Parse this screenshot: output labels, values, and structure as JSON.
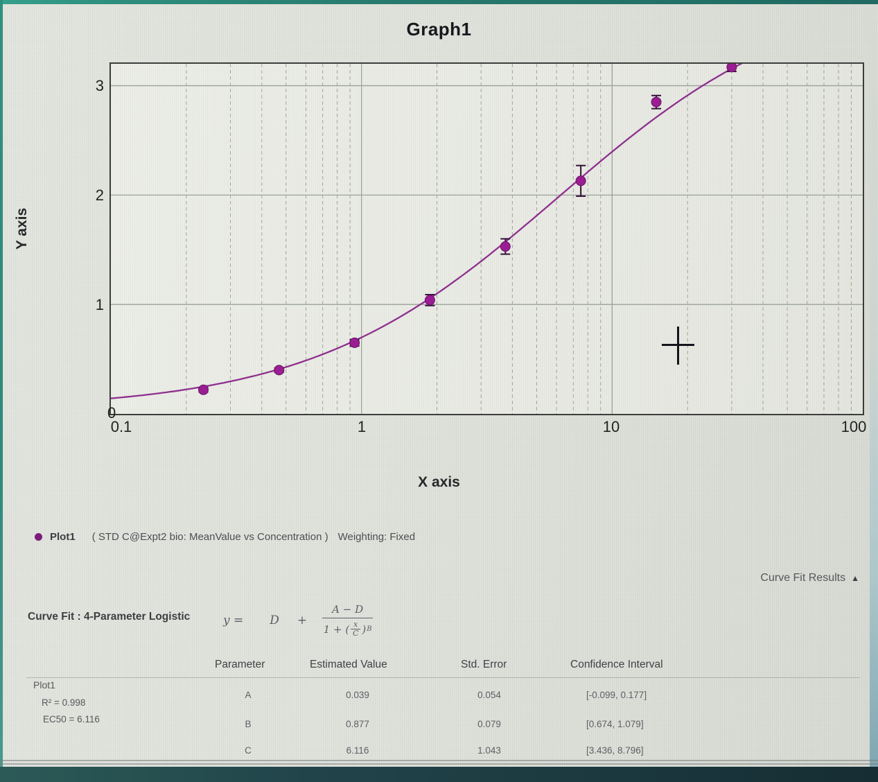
{
  "colors": {
    "background": "#e0e2db",
    "plot_background": "#e9ebe4",
    "plot_border": "#3a3d3a",
    "grid_major": "#9aa29a",
    "grid_minor": "#939b92",
    "curve": "#8e2f8e",
    "point": "#9a1d92",
    "point_edge": "#6b1266",
    "error_bar": "#331139",
    "accent_teal": "#2e9182",
    "bottom_band": "#1e4048"
  },
  "graph": {
    "title": "Graph1",
    "x_axis_label": "X axis",
    "y_axis_label": "Y axis",
    "x_ticks": [
      "0.1",
      "1",
      "10",
      "100"
    ],
    "y_ticks": [
      "3",
      "2",
      "1",
      "0"
    ]
  },
  "chart_data": {
    "type": "scatter",
    "title": "Graph1",
    "xlabel": "X axis",
    "ylabel": "Y axis",
    "x_scale": "log",
    "xlim": [
      0.1,
      100
    ],
    "ylim": [
      0,
      3.2
    ],
    "x_tick_values": [
      0.1,
      1,
      10,
      100
    ],
    "y_tick_values": [
      0,
      1,
      2,
      3
    ],
    "grid": "solid major gridlines at decades and integer y; dashed log minor verticals",
    "legend_position": "below plot",
    "series": [
      {
        "name": "Plot1",
        "x": [
          0.234,
          0.469,
          0.938,
          1.875,
          3.75,
          7.5,
          15,
          30
        ],
        "y": [
          0.22,
          0.4,
          0.65,
          1.04,
          1.53,
          2.13,
          2.85,
          3.17
        ],
        "y_err": [
          0.02,
          0.02,
          0.03,
          0.05,
          0.07,
          0.14,
          0.06,
          0.04
        ]
      }
    ],
    "fit": {
      "model": "4-Parameter Logistic",
      "A": 0.039,
      "B": 0.877,
      "C": 6.116,
      "R2": 0.998,
      "EC50": 6.116
    }
  },
  "legend": {
    "plot_name": "Plot1",
    "description": "( STD C@Expt2 bio: MeanValue vs Concentration )",
    "weighting": "Weighting: Fixed"
  },
  "results": {
    "header": "Curve Fit Results",
    "collapse_icon": "▲",
    "fit_label": "Curve Fit : 4-Parameter Logistic",
    "formula": {
      "lhs": "y =",
      "d_term": "D",
      "plus": "+",
      "numerator": "A − D",
      "den_prefix": "1 + (",
      "inner_num": "x",
      "inner_den": "C",
      "den_close": ")",
      "exponent": "B"
    },
    "stats": {
      "plot": "Plot1",
      "r2": "R² = 0.998",
      "ec50": "EC50 = 6.116"
    },
    "table": {
      "headers": [
        "Parameter",
        "Estimated Value",
        "Std. Error",
        "Confidence Interval"
      ],
      "rows": [
        {
          "parameter": "A",
          "estimated_value": "0.039",
          "std_error": "0.054",
          "confidence_interval": "[-0.099, 0.177]"
        },
        {
          "parameter": "B",
          "estimated_value": "0.877",
          "std_error": "0.079",
          "confidence_interval": "[0.674, 1.079]"
        },
        {
          "parameter": "C",
          "estimated_value": "6.116",
          "std_error": "1.043",
          "confidence_interval": "[3.436, 8.796]"
        }
      ]
    }
  }
}
